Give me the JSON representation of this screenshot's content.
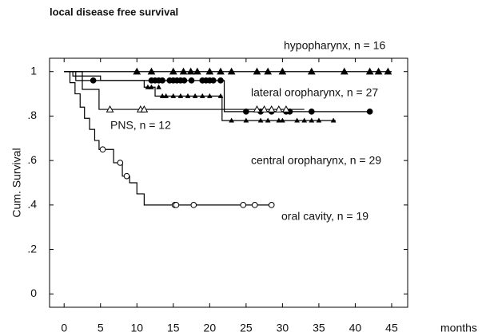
{
  "chart_data": {
    "type": "step",
    "title": "local disease free survival",
    "y_label": "Cum. Survival",
    "x_label": "months",
    "xlim": [
      -2,
      47.2
    ],
    "ylim": [
      -0.06,
      1.06
    ],
    "xticks": [
      0,
      5,
      10,
      15,
      20,
      25,
      30,
      35,
      40,
      45
    ],
    "yticks": [
      0,
      {
        "value": 0.2,
        "label": ".2"
      },
      {
        "value": 0.4,
        "label": ".4"
      },
      {
        "value": 0.6,
        "label": ".6"
      },
      {
        "value": 0.8,
        "label": ".8"
      },
      1
    ],
    "series": [
      {
        "name": "hypopharynx, n = 16",
        "color": "#000000",
        "marker": "triangle",
        "x": [
          0,
          45
        ],
        "values": [
          1,
          1
        ],
        "censor_x": [
          10,
          12,
          15,
          16.4,
          17.4,
          18.3,
          20,
          21.5,
          23,
          26.5,
          28,
          30,
          34,
          38.5,
          42,
          43.2,
          44.5
        ],
        "censor_values": [
          1,
          1,
          1,
          1,
          1,
          1,
          1,
          1,
          1,
          1,
          1,
          1,
          1,
          1,
          1,
          1,
          1
        ]
      },
      {
        "name": "lateral oropharynx, n = 27",
        "color": "#000000",
        "marker": "filled-circle",
        "x": [
          0,
          1.6,
          22,
          42
        ],
        "values": [
          1,
          0.96,
          0.82,
          0.82
        ],
        "censor_x": [
          4,
          12,
          12.5,
          13,
          13.5,
          14.5,
          15,
          15.5,
          16,
          16.5,
          17.5,
          19,
          19.5,
          20,
          20.5,
          21.5,
          25,
          27,
          28.5,
          30.5,
          31,
          34,
          42
        ],
        "censor_values": [
          0.96,
          0.96,
          0.96,
          0.96,
          0.96,
          0.96,
          0.96,
          0.96,
          0.96,
          0.96,
          0.96,
          0.96,
          0.96,
          0.96,
          0.96,
          0.96,
          0.82,
          0.82,
          0.82,
          0.82,
          0.82,
          0.82,
          0.82
        ]
      },
      {
        "name": "PNS, n = 12",
        "color": "#000000",
        "marker": "triangle",
        "x": [
          0,
          2.5,
          4.8,
          33
        ],
        "values": [
          1,
          0.92,
          0.83,
          0.83
        ],
        "censor_x": [
          6.3,
          10.5,
          11,
          26.5,
          27.5,
          28.5,
          29.5,
          30.5
        ],
        "censor_values": [
          0.83,
          0.83,
          0.83,
          0.83,
          0.83,
          0.83,
          0.83,
          0.83
        ]
      },
      {
        "name": "central oropharynx, n = 29",
        "color": "#000000",
        "marker": "small-triangle",
        "x": [
          0,
          1.2,
          5,
          11,
          12.5,
          21.7,
          37.3
        ],
        "values": [
          1,
          0.98,
          0.96,
          0.93,
          0.89,
          0.78,
          0.78
        ],
        "censor_x": [
          11.5,
          12,
          13,
          13.5,
          14,
          15,
          16,
          17,
          18,
          19,
          20,
          21.5,
          23,
          25,
          27,
          28,
          29.5,
          30,
          32,
          33,
          34,
          35,
          37
        ],
        "censor_values": [
          0.93,
          0.93,
          0.93,
          0.89,
          0.89,
          0.89,
          0.89,
          0.89,
          0.89,
          0.89,
          0.89,
          0.89,
          0.78,
          0.78,
          0.78,
          0.78,
          0.78,
          0.78,
          0.78,
          0.78,
          0.78,
          0.78,
          0.78
        ]
      },
      {
        "name": "oral cavity, n = 19",
        "color": "#000000",
        "marker": "circle",
        "x": [
          0,
          0.8,
          1.5,
          2.2,
          2.8,
          3.5,
          4.2,
          4.8,
          6.8,
          8,
          9,
          10,
          11,
          28.7
        ],
        "values": [
          1,
          0.95,
          0.9,
          0.84,
          0.79,
          0.74,
          0.69,
          0.65,
          0.59,
          0.53,
          0.5,
          0.45,
          0.4,
          0.4
        ],
        "censor_x": [
          5.3,
          7.7,
          8.6,
          15.2,
          15.4,
          17.8,
          24.6,
          26.2,
          28.5
        ],
        "censor_values": [
          0.65,
          0.59,
          0.53,
          0.4,
          0.4,
          0.4,
          0.4,
          0.4,
          0.4
        ]
      }
    ]
  }
}
